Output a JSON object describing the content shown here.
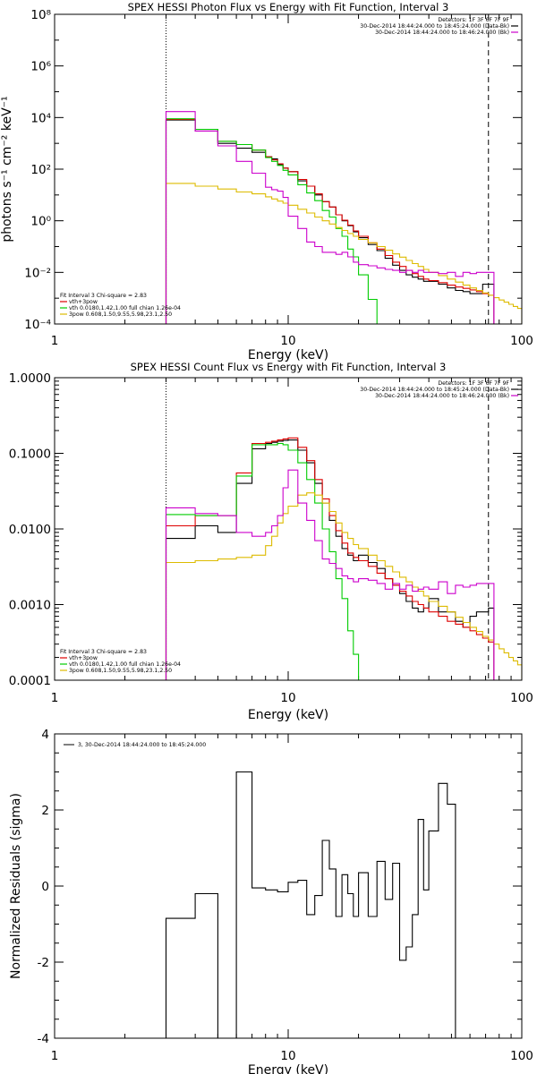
{
  "chart_data": [
    {
      "type": "line",
      "title": "SPEX HESSI Photon Flux vs Energy with Fit Function, Interval 3",
      "xlabel": "Energy (keV)",
      "ylabel": "photons s⁻¹ cm⁻² keV⁻¹",
      "xscale": "log",
      "yscale": "log",
      "xlim": [
        1,
        100
      ],
      "ylim": [
        0.0001,
        100000000
      ],
      "x_tick_labels": [
        "1",
        "10",
        "100"
      ],
      "y_tick_labels": [
        "10⁻⁴",
        "10⁻²",
        "10⁰",
        "10²",
        "10⁴",
        "10⁶",
        "10⁸"
      ],
      "vlines": [
        {
          "x": 3.0,
          "style": "dotted",
          "color": "#000000"
        },
        {
          "x": 72.0,
          "style": "dashed",
          "color": "#000000"
        }
      ],
      "header": [
        "Detectors: 1F 3F 6F 7F 9F",
        "30-Dec-2014 18:44:24.000 to 18:45:24.000 (Data-Bk)",
        "30-Dec-2014 18:44:24.000 to 18:46:24.000 (Bk)"
      ],
      "header_colors": [
        "",
        "#000000",
        "#cc00cc"
      ],
      "legend": {
        "title": "Fit Interval 3   Chi-square = 2.83",
        "entries": [
          {
            "label": "vth+3pow",
            "color": "#dd0000"
          },
          {
            "label": "vth 0.0180,1.42,1.00  full chian 1.26e-04",
            "color": "#00cc00"
          },
          {
            "label": "3pow 0.608,1.50,9.55,5.98,23.1,2.50",
            "color": "#ddbb00"
          }
        ]
      },
      "bin_edges": [
        3,
        3.5,
        4,
        4.5,
        5,
        5.5,
        6,
        6.5,
        7,
        7.5,
        8,
        8.5,
        9,
        9.5,
        10,
        11,
        12,
        13,
        14,
        15,
        16,
        17,
        18,
        19,
        20,
        22,
        24,
        26,
        28,
        30,
        32,
        34,
        36,
        38,
        40,
        44,
        48,
        52,
        56,
        60,
        64,
        68,
        72,
        76,
        80,
        84,
        88,
        92,
        96,
        100
      ],
      "series": [
        {
          "key": "data",
          "color": "#000000",
          "values": [
            8000,
            8000,
            3000,
            3000,
            1000,
            1000,
            650,
            650,
            450,
            450,
            300,
            250,
            150,
            110,
            80,
            35,
            22,
            10,
            5.5,
            3.4,
            1.7,
            1.0,
            0.65,
            0.37,
            0.22,
            0.12,
            0.07,
            0.035,
            0.019,
            0.012,
            0.008,
            0.0065,
            0.0055,
            0.0045,
            0.0045,
            0.0035,
            0.0025,
            0.002,
            0.0018,
            0.0015,
            0.0015,
            0.0035,
            0.0035
          ]
        },
        {
          "key": "vth+3pow",
          "color": "#dd0000",
          "values": [
            8500,
            8500,
            3500,
            3500,
            1200,
            1200,
            900,
            900,
            550,
            550,
            300,
            230,
            160,
            110,
            80,
            40,
            22,
            11,
            5.5,
            3.4,
            1.7,
            1.05,
            0.68,
            0.4,
            0.25,
            0.14,
            0.08,
            0.045,
            0.025,
            0.017,
            0.012,
            0.009,
            0.007,
            0.0055,
            0.0048,
            0.004,
            0.0032,
            0.0027,
            0.0024,
            0.0021,
            0.0018,
            0.0015,
            0.0013
          ]
        },
        {
          "key": "vth",
          "color": "#00cc00",
          "values": [
            9000,
            9000,
            3500,
            3500,
            1200,
            1200,
            900,
            900,
            550,
            550,
            280,
            200,
            140,
            90,
            60,
            25,
            12,
            6,
            2.5,
            1.4,
            0.5,
            0.25,
            0.08,
            0.04,
            0.008,
            0.0009,
            0.0001
          ]
        },
        {
          "key": "3pow",
          "color": "#ddbb00",
          "values": [
            28,
            28,
            22,
            22,
            17,
            17,
            13,
            13,
            11,
            11,
            8.5,
            7,
            5.8,
            4.8,
            4,
            2.8,
            2,
            1.4,
            1,
            0.75,
            0.55,
            0.42,
            0.32,
            0.25,
            0.19,
            0.14,
            0.1,
            0.072,
            0.052,
            0.039,
            0.029,
            0.022,
            0.017,
            0.013,
            0.01,
            0.0075,
            0.0055,
            0.0042,
            0.0032,
            0.0025,
            0.002,
            0.0016,
            0.0013,
            0.00105,
            0.00085,
            0.0007,
            0.00058,
            0.00048,
            0.0004
          ]
        },
        {
          "key": "bk",
          "color": "#cc00cc",
          "values": [
            17000,
            17000,
            3000,
            3000,
            800,
            800,
            200,
            200,
            70,
            70,
            20,
            16,
            14,
            8,
            1.5,
            0.5,
            0.15,
            0.1,
            0.06,
            0.06,
            0.05,
            0.06,
            0.04,
            0.025,
            0.02,
            0.018,
            0.015,
            0.013,
            0.012,
            0.01,
            0.012,
            0.01,
            0.012,
            0.01,
            0.01,
            0.009,
            0.01,
            0.007,
            0.01,
            0.009,
            0.01,
            0.01,
            0.01
          ]
        }
      ]
    },
    {
      "type": "line",
      "title": "SPEX HESSI Count Flux vs Energy with Fit Function, Interval 3",
      "xlabel": "Energy (keV)",
      "ylabel": "",
      "xscale": "log",
      "yscale": "log",
      "xlim": [
        1,
        100
      ],
      "ylim": [
        0.0001,
        1
      ],
      "x_tick_labels": [
        "1",
        "10",
        "100"
      ],
      "y_tick_labels": [
        "0.0001",
        "0.0010",
        "0.0100",
        "0.1000",
        "1.0000"
      ],
      "vlines": [
        {
          "x": 3.0,
          "style": "dotted",
          "color": "#000000"
        },
        {
          "x": 72.0,
          "style": "dashed",
          "color": "#000000"
        }
      ],
      "header": [
        "Detectors: 1F 3F 6F 7F 9F",
        "30-Dec-2014 18:44:24.000 to 18:45:24.000 (Data-Bk)",
        "30-Dec-2014 18:44:24.000 to 18:46:24.000 (Bk)"
      ],
      "header_colors": [
        "",
        "#000000",
        "#cc00cc"
      ],
      "legend": {
        "title": "Fit Interval 3   Chi-square = 2.83",
        "entries": [
          {
            "label": "vth+3pow",
            "color": "#dd0000"
          },
          {
            "label": "vth 0.0180,1.42,1.00  full chian 1.26e-04",
            "color": "#00cc00"
          },
          {
            "label": "3pow 0.608,1.50,9.55,5.98,23.1,2.50",
            "color": "#ddbb00"
          }
        ]
      },
      "bin_edges": [
        3,
        3.5,
        4,
        4.5,
        5,
        5.5,
        6,
        6.5,
        7,
        7.5,
        8,
        8.5,
        9,
        9.5,
        10,
        11,
        12,
        13,
        14,
        15,
        16,
        17,
        18,
        19,
        20,
        22,
        24,
        26,
        28,
        30,
        32,
        34,
        36,
        38,
        40,
        44,
        48,
        52,
        56,
        60,
        64,
        68,
        72,
        76,
        80,
        84,
        88,
        92,
        96,
        100
      ],
      "series": [
        {
          "key": "data",
          "color": "#000000",
          "values": [
            0.0075,
            0.0075,
            0.011,
            0.011,
            0.009,
            0.009,
            0.04,
            0.04,
            0.115,
            0.115,
            0.135,
            0.14,
            0.145,
            0.148,
            0.15,
            0.11,
            0.075,
            0.04,
            0.022,
            0.013,
            0.008,
            0.0055,
            0.0045,
            0.0038,
            0.0045,
            0.0036,
            0.003,
            0.0022,
            0.0018,
            0.0014,
            0.0011,
            0.0009,
            0.0008,
            0.0009,
            0.0012,
            0.0008,
            0.0008,
            0.0006,
            0.0005,
            0.0007,
            0.0008,
            0.0008,
            0.0009
          ]
        },
        {
          "key": "vth+3pow",
          "color": "#dd0000",
          "values": [
            0.011,
            0.011,
            0.015,
            0.015,
            0.015,
            0.015,
            0.055,
            0.055,
            0.135,
            0.135,
            0.14,
            0.145,
            0.15,
            0.155,
            0.16,
            0.12,
            0.08,
            0.045,
            0.025,
            0.015,
            0.0095,
            0.0065,
            0.0048,
            0.0042,
            0.0038,
            0.0032,
            0.0026,
            0.0022,
            0.0018,
            0.0015,
            0.0013,
            0.0011,
            0.001,
            0.0009,
            0.0008,
            0.0007,
            0.0006,
            0.00055,
            0.0005,
            0.00045,
            0.0004,
            0.00036,
            0.00032
          ]
        },
        {
          "key": "vth",
          "color": "#00cc00",
          "values": [
            0.0155,
            0.0155,
            0.015,
            0.015,
            0.015,
            0.015,
            0.05,
            0.05,
            0.13,
            0.13,
            0.13,
            0.13,
            0.135,
            0.13,
            0.11,
            0.075,
            0.045,
            0.022,
            0.01,
            0.005,
            0.0022,
            0.0012,
            0.00045,
            0.00022,
            9e-05,
            2e-05
          ]
        },
        {
          "key": "3pow",
          "color": "#ddbb00",
          "values": [
            0.0036,
            0.0036,
            0.0038,
            0.0038,
            0.004,
            0.004,
            0.0042,
            0.0042,
            0.0045,
            0.0045,
            0.006,
            0.008,
            0.012,
            0.016,
            0.02,
            0.028,
            0.03,
            0.028,
            0.022,
            0.017,
            0.012,
            0.009,
            0.0075,
            0.0062,
            0.0055,
            0.0045,
            0.0038,
            0.0032,
            0.0027,
            0.0023,
            0.002,
            0.0017,
            0.0015,
            0.0013,
            0.0011,
            0.00095,
            0.0008,
            0.00068,
            0.00058,
            0.0005,
            0.00044,
            0.00038,
            0.00034,
            0.0003,
            0.00026,
            0.00023,
            0.0002,
            0.00018,
            0.00016
          ]
        },
        {
          "key": "bk",
          "color": "#cc00cc",
          "values": [
            0.019,
            0.019,
            0.016,
            0.016,
            0.015,
            0.015,
            0.009,
            0.009,
            0.008,
            0.008,
            0.009,
            0.011,
            0.015,
            0.035,
            0.06,
            0.022,
            0.013,
            0.007,
            0.004,
            0.0035,
            0.003,
            0.0024,
            0.0022,
            0.002,
            0.0022,
            0.0021,
            0.0019,
            0.0016,
            0.0019,
            0.0016,
            0.0018,
            0.0015,
            0.0016,
            0.0017,
            0.0016,
            0.002,
            0.0014,
            0.0018,
            0.0017,
            0.0018,
            0.0019,
            0.0019,
            0.0019
          ]
        }
      ]
    },
    {
      "type": "line",
      "title": "",
      "xlabel": "Energy (keV)",
      "ylabel": "Normalized Residuals (sigma)",
      "xscale": "log",
      "yscale": "linear",
      "xlim": [
        1,
        100
      ],
      "ylim": [
        -4,
        4
      ],
      "x_tick_labels": [
        "1",
        "10",
        "100"
      ],
      "y_tick_labels": [
        "-4",
        "-2",
        "0",
        "2",
        "4"
      ],
      "legend": {
        "entries": [
          {
            "label": "3, 30-Dec-2014 18:44:24.000 to 18:45:24.000",
            "color": "#000000"
          }
        ]
      },
      "bin_edges": [
        3,
        4,
        5,
        6,
        7,
        8,
        9,
        10,
        11,
        12,
        13,
        14,
        15,
        16,
        17,
        18,
        19,
        20,
        22,
        24,
        26,
        28,
        30,
        32,
        34,
        36,
        38,
        40,
        44,
        48,
        52,
        56,
        60,
        64,
        68,
        72
      ],
      "series": [
        {
          "key": "residuals",
          "color": "#000000",
          "values": [
            -0.85,
            -0.2,
            -4.0,
            3.0,
            -0.05,
            -0.1,
            -0.15,
            0.1,
            0.15,
            -0.75,
            -0.25,
            1.2,
            0.45,
            -0.8,
            0.3,
            -0.2,
            -0.8,
            0.35,
            -0.8,
            0.65,
            -0.35,
            0.6,
            -1.95,
            -1.6,
            -0.75,
            1.75,
            -0.1,
            1.45,
            2.7,
            2.15
          ]
        }
      ]
    }
  ]
}
